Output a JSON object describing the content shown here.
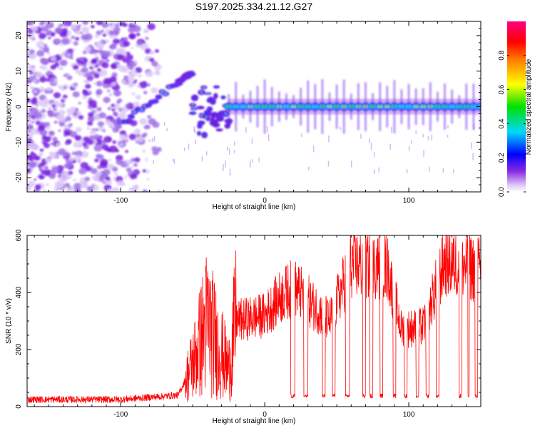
{
  "title": "S197.2025.334.21.12.G27",
  "chart_data": [
    {
      "type": "heatmap",
      "panel": "spectrogram",
      "xlabel": "Height of straight line (km)",
      "ylabel": "Frequency (Hz)",
      "xlim": [
        -165,
        150
      ],
      "ylim": [
        -24,
        24
      ],
      "xticks": [
        -100,
        0,
        100
      ],
      "yticks": [
        -20,
        -10,
        0,
        10,
        20
      ],
      "xtick_labels": [
        "-100",
        "0",
        "100"
      ],
      "ytick_labels": [
        "-20",
        "-10",
        "0",
        "10",
        "20"
      ],
      "colorbar": {
        "label": "Normalized spectral amplitude",
        "range": [
          0,
          1
        ],
        "ticks": [
          "0.0",
          "0.2",
          "0.4",
          "0.6",
          "0.8"
        ],
        "tick_values": [
          0.0,
          0.2,
          0.4,
          0.6,
          0.8
        ],
        "colors": [
          "#ffffff",
          "#dcc8f8",
          "#8a2be2",
          "#0000ff",
          "#00d8ff",
          "#00e000",
          "#ffff00",
          "#ff8000",
          "#ff0000",
          "#ff0080"
        ]
      },
      "features": {
        "noise_region_x": [
          -165,
          -80
        ],
        "rising_line": [
          [
            -100,
            -5
          ],
          [
            -60,
            7
          ],
          [
            -50,
            10
          ]
        ],
        "tone_frequency_hz": 0,
        "tone_x_start": -25,
        "tone_x_end": 150
      }
    },
    {
      "type": "line",
      "panel": "snr",
      "xlabel": "Height of straight line (km)",
      "ylabel": "SNR (10 * v/v)",
      "xlim": [
        -165,
        150
      ],
      "ylim": [
        0,
        600
      ],
      "xticks": [
        -100,
        0,
        100
      ],
      "yticks": [
        0,
        200,
        400,
        600
      ],
      "xtick_labels": [
        "-100",
        "0",
        "100"
      ],
      "ytick_labels": [
        "0",
        "200",
        "400",
        "600"
      ],
      "series": [
        {
          "name": "SNR",
          "color": "#ff0000",
          "envelope": [
            {
              "x": -165,
              "y": 25
            },
            {
              "x": -100,
              "y": 25
            },
            {
              "x": -60,
              "y": 40
            },
            {
              "x": -50,
              "y": 150
            },
            {
              "x": -40,
              "y": 300
            },
            {
              "x": -25,
              "y": 130
            },
            {
              "x": -20,
              "y": 300
            },
            {
              "x": 0,
              "y": 320
            },
            {
              "x": 10,
              "y": 380
            },
            {
              "x": 20,
              "y": 420
            },
            {
              "x": 45,
              "y": 300
            },
            {
              "x": 60,
              "y": 500
            },
            {
              "x": 85,
              "y": 490
            },
            {
              "x": 95,
              "y": 270
            },
            {
              "x": 110,
              "y": 280
            },
            {
              "x": 125,
              "y": 510
            },
            {
              "x": 150,
              "y": 480
            }
          ],
          "dropouts": [
            [
              18,
              21
            ],
            [
              27,
              30
            ],
            [
              40,
              42
            ],
            [
              47,
              49
            ],
            [
              56,
              59
            ],
            [
              68,
              70
            ],
            [
              73,
              75
            ],
            [
              80,
              82
            ],
            [
              89,
              91
            ],
            [
              97,
              99
            ],
            [
              105,
              107
            ],
            [
              112,
              114
            ],
            [
              119,
              121
            ],
            [
              135,
              137
            ],
            [
              141,
              142
            ],
            [
              146,
              148
            ]
          ]
        }
      ]
    }
  ]
}
